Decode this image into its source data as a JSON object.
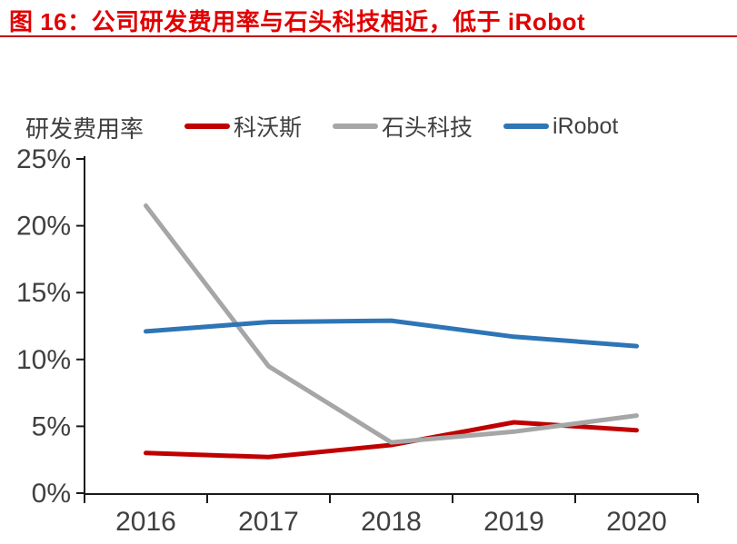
{
  "title": {
    "text": "图 16：公司研发费用率与石头科技相近，低于 iRobot"
  },
  "colors": {
    "title": "#e00000",
    "divider": "#c00000",
    "text": "#404040",
    "axis": "#1a1a1a",
    "background": "#ffffff"
  },
  "chart_data": {
    "type": "line",
    "title": "",
    "ylabel": "研发费用率",
    "xlabel": "",
    "categories": [
      "2016",
      "2017",
      "2018",
      "2019",
      "2020"
    ],
    "series": [
      {
        "name": "科沃斯",
        "color": "#c00000",
        "values": [
          3.0,
          2.7,
          3.6,
          5.3,
          4.7
        ]
      },
      {
        "name": "石头科技",
        "color": "#a6a6a6",
        "values": [
          21.5,
          9.5,
          3.8,
          4.6,
          5.8
        ]
      },
      {
        "name": "iRobot",
        "color": "#2e75b6",
        "values": [
          12.1,
          12.8,
          12.9,
          11.7,
          11.0
        ]
      }
    ],
    "ylim": [
      0,
      25
    ],
    "ytick_step": 5,
    "yticks": [
      "0%",
      "5%",
      "10%",
      "15%",
      "20%",
      "25%"
    ],
    "grid": false,
    "legend_position": "top",
    "line_width": 5
  }
}
